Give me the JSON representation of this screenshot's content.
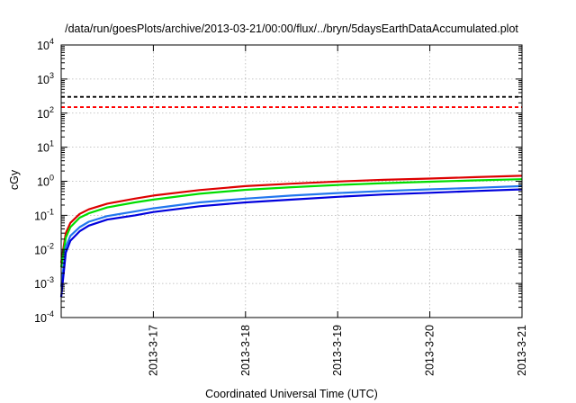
{
  "chart_data": {
    "type": "line",
    "title": "/data/run/goesPlots/archive/2013-03-21/00:00/flux/../bryn/5daysEarthDataAccumulated.plot",
    "xlabel": "Coordinated Universal Time (UTC)",
    "ylabel": "cGy",
    "x_ticks": [
      "2013-3-17",
      "2013-3-18",
      "2013-3-19",
      "2013-3-20",
      "2013-3-21"
    ],
    "xlim": [
      "2013-03-16 00:00",
      "2013-03-21 00:00"
    ],
    "y_scale": "log",
    "ylim": [
      0.0001,
      10000
    ],
    "y_ticks": [
      {
        "base": "10",
        "exp": "-4"
      },
      {
        "base": "10",
        "exp": "-3"
      },
      {
        "base": "10",
        "exp": "-2"
      },
      {
        "base": "10",
        "exp": "-1"
      },
      {
        "base": "10",
        "exp": "0"
      },
      {
        "base": "10",
        "exp": "1"
      },
      {
        "base": "10",
        "exp": "2"
      },
      {
        "base": "10",
        "exp": "3"
      },
      {
        "base": "10",
        "exp": "4"
      }
    ],
    "grid": true,
    "thresholds": [
      {
        "value": 300,
        "color": "#000000",
        "style": "dashed"
      },
      {
        "value": 150,
        "color": "#ff0000",
        "style": "dashed"
      }
    ],
    "series": [
      {
        "color": "#dd0000",
        "x": [
          "2013-03-16 00:00",
          "2013-03-16 01:12",
          "2013-03-16 02:24",
          "2013-03-16 04:48",
          "2013-03-16 07:12",
          "2013-03-16 12:00",
          "2013-03-16 19:12",
          "2013-03-17 00:00",
          "2013-03-17 12:00",
          "2013-03-18 00:00",
          "2013-03-18 12:00",
          "2013-03-19 00:00",
          "2013-03-19 12:00",
          "2013-03-20 00:00",
          "2013-03-20 12:00",
          "2013-03-21 00:00"
        ],
        "y": [
          0.004,
          0.03,
          0.06,
          0.11,
          0.15,
          0.22,
          0.31,
          0.38,
          0.55,
          0.72,
          0.85,
          0.98,
          1.1,
          1.2,
          1.32,
          1.45
        ]
      },
      {
        "color": "#00dd00",
        "x": [
          "2013-03-16 00:00",
          "2013-03-16 01:12",
          "2013-03-16 02:24",
          "2013-03-16 04:48",
          "2013-03-16 07:12",
          "2013-03-16 12:00",
          "2013-03-16 19:12",
          "2013-03-17 00:00",
          "2013-03-17 12:00",
          "2013-03-18 00:00",
          "2013-03-18 12:00",
          "2013-03-19 00:00",
          "2013-03-19 12:00",
          "2013-03-20 00:00",
          "2013-03-20 12:00",
          "2013-03-21 00:00"
        ],
        "y": [
          0.003,
          0.022,
          0.045,
          0.085,
          0.115,
          0.17,
          0.24,
          0.29,
          0.43,
          0.56,
          0.67,
          0.78,
          0.88,
          0.97,
          1.06,
          1.15
        ]
      },
      {
        "color": "#2277ee",
        "x": [
          "2013-03-16 00:00",
          "2013-03-16 01:12",
          "2013-03-16 02:24",
          "2013-03-16 04:48",
          "2013-03-16 07:12",
          "2013-03-16 12:00",
          "2013-03-16 19:12",
          "2013-03-17 00:00",
          "2013-03-17 12:00",
          "2013-03-18 00:00",
          "2013-03-18 12:00",
          "2013-03-19 00:00",
          "2013-03-19 12:00",
          "2013-03-20 00:00",
          "2013-03-20 12:00",
          "2013-03-21 00:00"
        ],
        "y": [
          0.0008,
          0.012,
          0.025,
          0.045,
          0.065,
          0.095,
          0.13,
          0.16,
          0.24,
          0.31,
          0.38,
          0.45,
          0.52,
          0.58,
          0.64,
          0.72
        ]
      },
      {
        "color": "#0000dd",
        "x": [
          "2013-03-16 00:00",
          "2013-03-16 01:12",
          "2013-03-16 02:24",
          "2013-03-16 04:48",
          "2013-03-16 07:12",
          "2013-03-16 12:00",
          "2013-03-16 19:12",
          "2013-03-17 00:00",
          "2013-03-17 12:00",
          "2013-03-18 00:00",
          "2013-03-18 12:00",
          "2013-03-19 00:00",
          "2013-03-19 12:00",
          "2013-03-20 00:00",
          "2013-03-20 12:00",
          "2013-03-21 00:00"
        ],
        "y": [
          0.0004,
          0.008,
          0.018,
          0.034,
          0.05,
          0.075,
          0.1,
          0.125,
          0.185,
          0.24,
          0.29,
          0.35,
          0.41,
          0.46,
          0.52,
          0.58
        ]
      }
    ]
  }
}
